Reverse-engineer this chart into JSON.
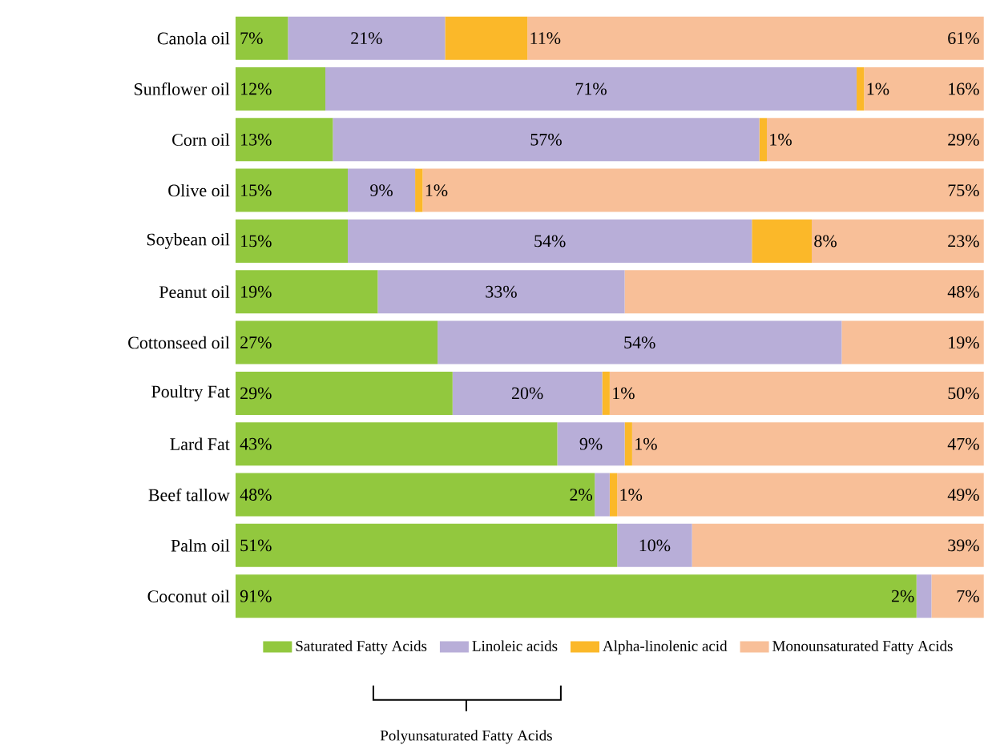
{
  "chart_data": {
    "type": "bar",
    "orientation": "horizontal",
    "stacked": true,
    "legend": "bottom",
    "tick_labels": "y",
    "categories": [
      "Canola oil",
      "Sunflower oil",
      "Corn oil",
      "Olive oil",
      "Soybean oil",
      "Peanut oil",
      "Cottonseed oil",
      "Poultry Fat",
      "Lard Fat",
      "Beef tallow",
      "Palm oil",
      "Coconut oil"
    ],
    "series": [
      {
        "name": "Saturated Fatty Acids",
        "color": "#92c83e",
        "values": [
          7,
          12,
          13,
          15,
          15,
          19,
          27,
          29,
          43,
          48,
          51,
          91
        ],
        "value_labels": [
          "7%",
          "12%",
          "13%",
          "15%",
          "15%",
          "19%",
          "27%",
          "29%",
          "43%",
          "48%",
          "51%",
          "91%"
        ]
      },
      {
        "name": "Linoleic acids",
        "color": "#b8aed8",
        "values": [
          21,
          71,
          57,
          9,
          54,
          33,
          54,
          20,
          9,
          2,
          10,
          2
        ],
        "value_labels": [
          "21%",
          "71%",
          "57%",
          "9%",
          "54%",
          "33%",
          "54%",
          "20%",
          "9%",
          "2%",
          "10%",
          "2%"
        ]
      },
      {
        "name": "Alpha-linolenic acid",
        "color": "#fbb829",
        "values": [
          11,
          1,
          1,
          1,
          8,
          null,
          null,
          1,
          1,
          1,
          null,
          null
        ],
        "value_labels": [
          "11%",
          "1%",
          "1%",
          "1%",
          "8%",
          null,
          null,
          "1%",
          "1%",
          "1%",
          null,
          null
        ]
      },
      {
        "name": "Monounsaturated Fatty Acids",
        "color": "#f8bf98",
        "values": [
          61,
          16,
          29,
          75,
          23,
          48,
          19,
          50,
          47,
          49,
          39,
          7
        ],
        "value_labels": [
          "61%",
          "16%",
          "29%",
          "75%",
          "23%",
          "48%",
          "19%",
          "50%",
          "47%",
          "49%",
          "39%",
          "7%"
        ]
      }
    ],
    "annotations": [
      "Polyunsaturated Fatty Acids"
    ]
  }
}
